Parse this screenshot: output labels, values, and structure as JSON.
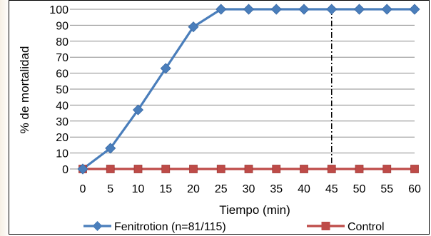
{
  "chart_data": {
    "type": "line",
    "xlabel": "Tiempo (min)",
    "ylabel": "% de mortalidad",
    "x": [
      0,
      5,
      10,
      15,
      20,
      25,
      30,
      35,
      40,
      45,
      50,
      55,
      60
    ],
    "xlim": [
      0,
      60
    ],
    "ylim": [
      0,
      100
    ],
    "y_ticks": [
      0,
      10,
      20,
      30,
      40,
      50,
      60,
      70,
      80,
      90,
      100
    ],
    "grid": true,
    "legend_position": "bottom",
    "reference_line": {
      "x": 45,
      "style": "dash-dot",
      "color": "#000000"
    },
    "series": [
      {
        "name": "Fenitrotion (n=81/115)",
        "marker": "diamond",
        "color": "#4a7ebb",
        "values": [
          0,
          13,
          37,
          63,
          89,
          100,
          100,
          100,
          100,
          100,
          100,
          100,
          100
        ]
      },
      {
        "name": "Control",
        "marker": "square",
        "color": "#be4b48",
        "values": [
          0,
          0,
          0,
          0,
          0,
          0,
          0,
          0,
          0,
          0,
          0,
          0,
          0
        ]
      }
    ]
  }
}
